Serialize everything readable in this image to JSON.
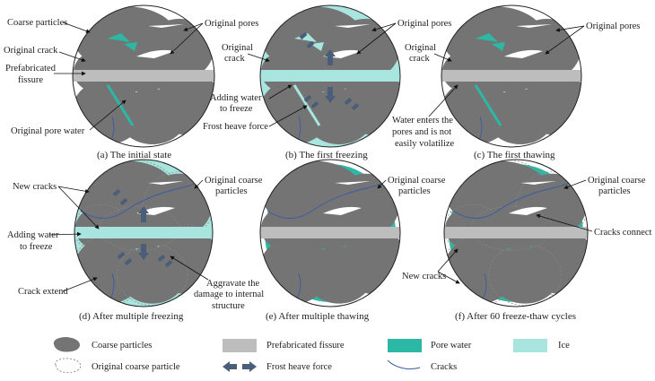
{
  "colors": {
    "coarse_particle": "#747474",
    "fissure": "#bdbdbd",
    "pore_water": "#2db8a5",
    "ice": "#a8e5de",
    "frost_arrow": "#4b5e79",
    "crack": "#3a5aa8"
  },
  "panels": {
    "a": {
      "caption": "(a) The initial state",
      "labels": [
        "Coarse particles",
        "Original crack",
        "Prefabricated",
        "fissure",
        "Original pores",
        "Original pore water"
      ]
    },
    "b": {
      "caption": "(b) The first freezing",
      "labels": [
        "Original",
        "crack",
        "Original pores",
        "Adding water",
        "to freeze",
        "Frost heave force"
      ]
    },
    "c": {
      "caption": "(c) The first thawing",
      "labels": [
        "Original",
        "crack",
        "Original pores",
        "Water enters the",
        "pores and is not",
        "easily volatilize"
      ]
    },
    "d": {
      "caption": "(d) After multiple freezing",
      "labels": [
        "New cracks",
        "Adding water",
        "to freeze",
        "Crack extend",
        "Aggravate the",
        "damage to internal",
        "structure"
      ]
    },
    "e": {
      "caption": "(e) After multiple thawing",
      "labels": [
        "Original coarse",
        "particles"
      ]
    },
    "f": {
      "caption": "(f) After 60 freeze-thaw cycles",
      "labels": [
        "Original coarse",
        "particles",
        "Cracks connect",
        "New cracks"
      ]
    }
  },
  "legend": [
    {
      "label": "Coarse particles",
      "icon": "coarse-particle-blob"
    },
    {
      "label": "Prefabricated fissure",
      "icon": "gray-rectangle"
    },
    {
      "label": "Pore water",
      "icon": "teal-rectangle"
    },
    {
      "label": "Ice",
      "icon": "light-cyan-rectangle"
    },
    {
      "label": "Original coarse particle",
      "icon": "dashed-outline-blob"
    },
    {
      "label": "Frost heave force",
      "icon": "double-arrow"
    },
    {
      "label": "Cracks",
      "icon": "blue-curve"
    }
  ]
}
